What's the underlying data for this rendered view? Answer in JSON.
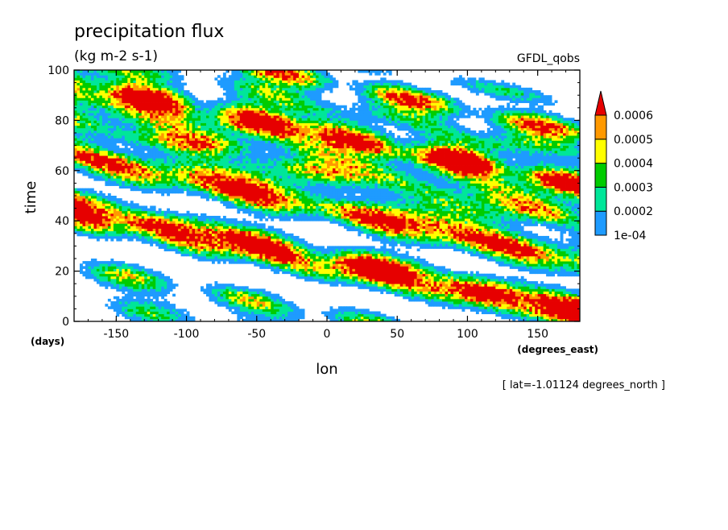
{
  "chart_data": {
    "type": "heatmap",
    "title": "precipitation flux",
    "units": "(kg m-2 s-1)",
    "dataset": "GFDL_qobs",
    "xlabel": "lon",
    "ylabel": "time",
    "x_units": "(degrees_east)",
    "y_units": "(days)",
    "footnote": "[ lat=-1.01124 degrees_north ]",
    "xlim": [
      -180,
      180
    ],
    "ylim": [
      0,
      100
    ],
    "x_ticks": [
      -150,
      -100,
      -50,
      0,
      50,
      100,
      150
    ],
    "y_ticks": [
      0,
      20,
      40,
      60,
      80,
      100
    ],
    "x_tick_labels": [
      "-150",
      "-100",
      "-50",
      "0",
      "50",
      "100",
      "150"
    ],
    "y_tick_labels": [
      "0",
      "20",
      "40",
      "60",
      "80",
      "100"
    ],
    "grid": false,
    "colorbar": {
      "position": "right",
      "levels": [
        0.0001,
        0.0002,
        0.0003,
        0.0004,
        0.0005,
        0.0006
      ],
      "tick_labels": [
        "1e-04",
        "0.0002",
        "0.0003",
        "0.0004",
        "0.0005",
        "0.0006"
      ],
      "colors": [
        "#1e9bff",
        "#00e699",
        "#00cc00",
        "#ffff00",
        "#ff9900",
        "#e60000"
      ],
      "extend": "max"
    },
    "bands": [
      {
        "x0": -180,
        "t0": 95,
        "slope": -0.11,
        "width": 3.6,
        "amp": 0.00036
      },
      {
        "x0": -180,
        "t0": 87,
        "slope": -0.11,
        "width": 2.4,
        "amp": 0.00022
      },
      {
        "x0": -180,
        "t0": 64,
        "slope": -0.115,
        "width": 4.0,
        "amp": 0.00046
      },
      {
        "x0": -180,
        "t0": 40,
        "slope": -0.11,
        "width": 3.4,
        "amp": 0.00036
      },
      {
        "x0": -180,
        "t0": 20,
        "slope": -0.11,
        "width": 2.8,
        "amp": 0.00026
      },
      {
        "x0": -180,
        "t0": 9,
        "slope": -0.1,
        "width": 3.2,
        "amp": 0.00034
      },
      {
        "x0": -120,
        "t0": 84,
        "slope": -0.1,
        "width": 2.0,
        "amp": 0.00018
      },
      {
        "x0": -110,
        "t0": 72,
        "slope": -0.11,
        "width": 2.4,
        "amp": 0.00022
      },
      {
        "x0": -80,
        "t0": 59,
        "slope": -0.12,
        "width": 4.2,
        "amp": 0.00038
      },
      {
        "x0": -70,
        "t0": 95,
        "slope": -0.11,
        "width": 2.6,
        "amp": 0.0003
      },
      {
        "x0": -60,
        "t0": 31,
        "slope": -0.11,
        "width": 3.0,
        "amp": 0.00034
      },
      {
        "x0": -40,
        "t0": 50,
        "slope": -0.12,
        "width": 3.4,
        "amp": 0.00028
      },
      {
        "x0": -40,
        "t0": 8,
        "slope": -0.11,
        "width": 2.6,
        "amp": 0.00032
      },
      {
        "x0": -10,
        "t0": 96,
        "slope": -0.115,
        "width": 3.2,
        "amp": 0.00044
      },
      {
        "x0": 20,
        "t0": 72,
        "slope": -0.115,
        "width": 3.2,
        "amp": 0.00036
      },
      {
        "x0": 40,
        "t0": 52,
        "slope": -0.12,
        "width": 2.6,
        "amp": 0.00024
      },
      {
        "x0": 40,
        "t0": 22,
        "slope": -0.115,
        "width": 3.6,
        "amp": 0.00046
      },
      {
        "x0": 60,
        "t0": 99,
        "slope": -0.11,
        "width": 2.4,
        "amp": 0.00028
      },
      {
        "x0": 80,
        "t0": 65,
        "slope": -0.11,
        "width": 3.8,
        "amp": 0.00046
      },
      {
        "x0": 90,
        "t0": 35,
        "slope": -0.115,
        "width": 2.6,
        "amp": 0.00026
      },
      {
        "x0": 100,
        "t0": 12,
        "slope": -0.115,
        "width": 3.8,
        "amp": 0.0005
      },
      {
        "x0": 110,
        "t0": 50,
        "slope": -0.115,
        "width": 3.4,
        "amp": 0.00046
      },
      {
        "x0": 120,
        "t0": 82,
        "slope": -0.115,
        "width": 2.8,
        "amp": 0.00034
      },
      {
        "x0": 150,
        "t0": 67,
        "slope": -0.11,
        "width": 2.4,
        "amp": 0.00026
      }
    ]
  }
}
